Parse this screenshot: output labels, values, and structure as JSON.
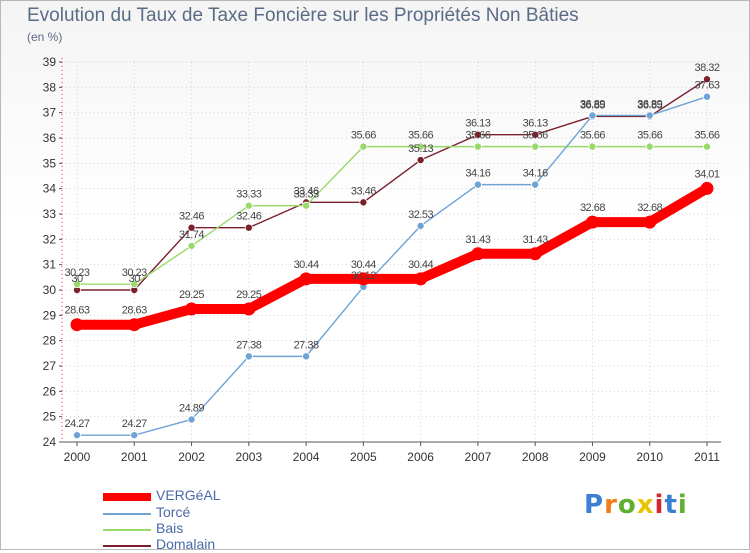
{
  "chart_data": {
    "type": "line",
    "title": "Evolution du Taux de Taxe Foncière sur les Propriétés Non Bâties",
    "ylabel": "(en %)",
    "xlabel": "",
    "categories": [
      "2000",
      "2001",
      "2002",
      "2003",
      "2004",
      "2005",
      "2006",
      "2007",
      "2008",
      "2009",
      "2010",
      "2011"
    ],
    "ylim": [
      24,
      39
    ],
    "yticks": [
      "24",
      "25",
      "26",
      "27",
      "28",
      "29",
      "30",
      "31",
      "32",
      "33",
      "34",
      "35",
      "36",
      "37",
      "38",
      "39"
    ],
    "grid": true,
    "legend_position": "bottom-left",
    "series": [
      {
        "name": "Domalain",
        "color": "#7a1f2b",
        "values": [
          30.0,
          30.0,
          32.46,
          32.46,
          33.46,
          33.46,
          35.13,
          36.13,
          36.13,
          36.85,
          36.85,
          38.32
        ],
        "labels": [
          "30",
          "30",
          "32.46",
          "32.46",
          "33.46",
          "33.46",
          "35.13",
          "36.13",
          "36.13",
          "36.85",
          "36.85",
          "38.32"
        ]
      },
      {
        "name": "Bais",
        "color": "#99d96a",
        "values": [
          30.23,
          30.23,
          31.74,
          33.33,
          33.33,
          35.66,
          35.66,
          35.66,
          35.66,
          35.66,
          35.66,
          35.66
        ],
        "labels": [
          "30.23",
          "30.23",
          "31.74",
          "33.33",
          "33.33",
          "35.66",
          "35.66",
          "35.66",
          "35.66",
          "35.66",
          "35.66",
          "35.66"
        ]
      },
      {
        "name": "Torcé",
        "color": "#6fa3d6",
        "values": [
          24.27,
          24.27,
          24.89,
          27.38,
          27.38,
          30.12,
          32.53,
          34.16,
          34.16,
          36.89,
          36.89,
          37.63
        ],
        "labels": [
          "24.27",
          "24.27",
          "24.89",
          "27.38",
          "27.38",
          "30.12",
          "32.53",
          "34.16",
          "34.16",
          "36.89",
          "36.89",
          "37.63"
        ]
      },
      {
        "name": "VERGéAL",
        "color": "#ff0000",
        "values": [
          28.63,
          28.63,
          29.25,
          29.25,
          30.44,
          30.44,
          30.44,
          31.43,
          31.43,
          32.68,
          32.68,
          34.01
        ],
        "labels": [
          "28.63",
          "28.63",
          "29.25",
          "29.25",
          "30.44",
          "30.44",
          "30.44",
          "31.43",
          "31.43",
          "32.68",
          "32.68",
          "34.01"
        ]
      }
    ],
    "legend_order": [
      "VERGéAL",
      "Torcé",
      "Bais",
      "Domalain"
    ]
  },
  "logo": {
    "letters": [
      "P",
      "r",
      "o",
      "x",
      "i",
      "t",
      "i"
    ],
    "colors": [
      "#3b7fd4",
      "#f07d1a",
      "#5fb030",
      "#e8c500",
      "#d4262e",
      "#3b7fd4",
      "#5fb030"
    ]
  }
}
